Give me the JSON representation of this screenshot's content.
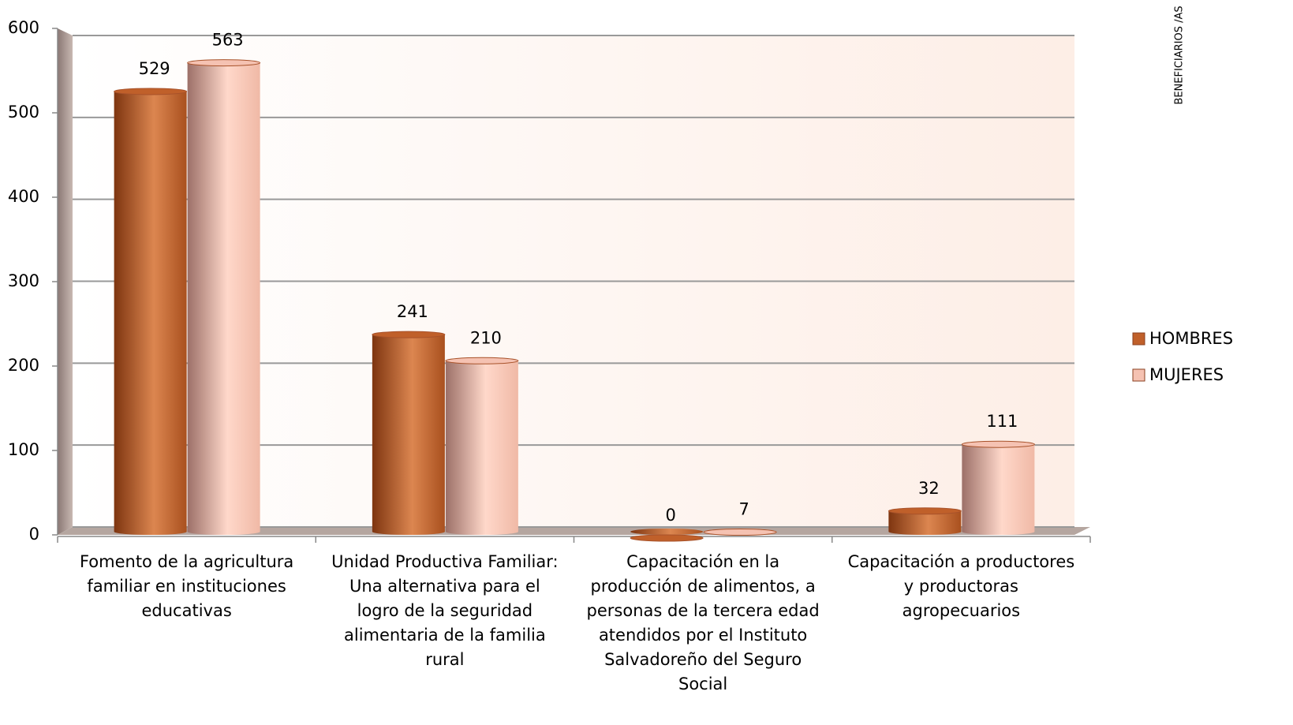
{
  "chart_data": {
    "type": "bar",
    "categories": [
      "Fomento de la agricultura familiar en instituciones educativas",
      "Unidad Productiva Familiar: Una alternativa para el logro de la seguridad alimentaria de la familia rural",
      "Capacitación en la producción de alimentos, a personas de la tercera edad atendidos por el Instituto Salvadoreño del Seguro Social",
      "Capacitación a productores y productoras agropecuarios"
    ],
    "series": [
      {
        "name": "HOMBRES",
        "color": "#c0602a",
        "values": [
          529,
          241,
          0,
          32
        ]
      },
      {
        "name": "MUJERES",
        "color": "#f5c2b2",
        "values": [
          563,
          210,
          7,
          111
        ]
      }
    ],
    "ylim": [
      0,
      600
    ],
    "yticks": [
      0,
      100,
      200,
      300,
      400,
      500,
      600
    ],
    "grid": true,
    "legend": "right",
    "annotations": [
      "BENEFICIARIOS /AS"
    ]
  }
}
